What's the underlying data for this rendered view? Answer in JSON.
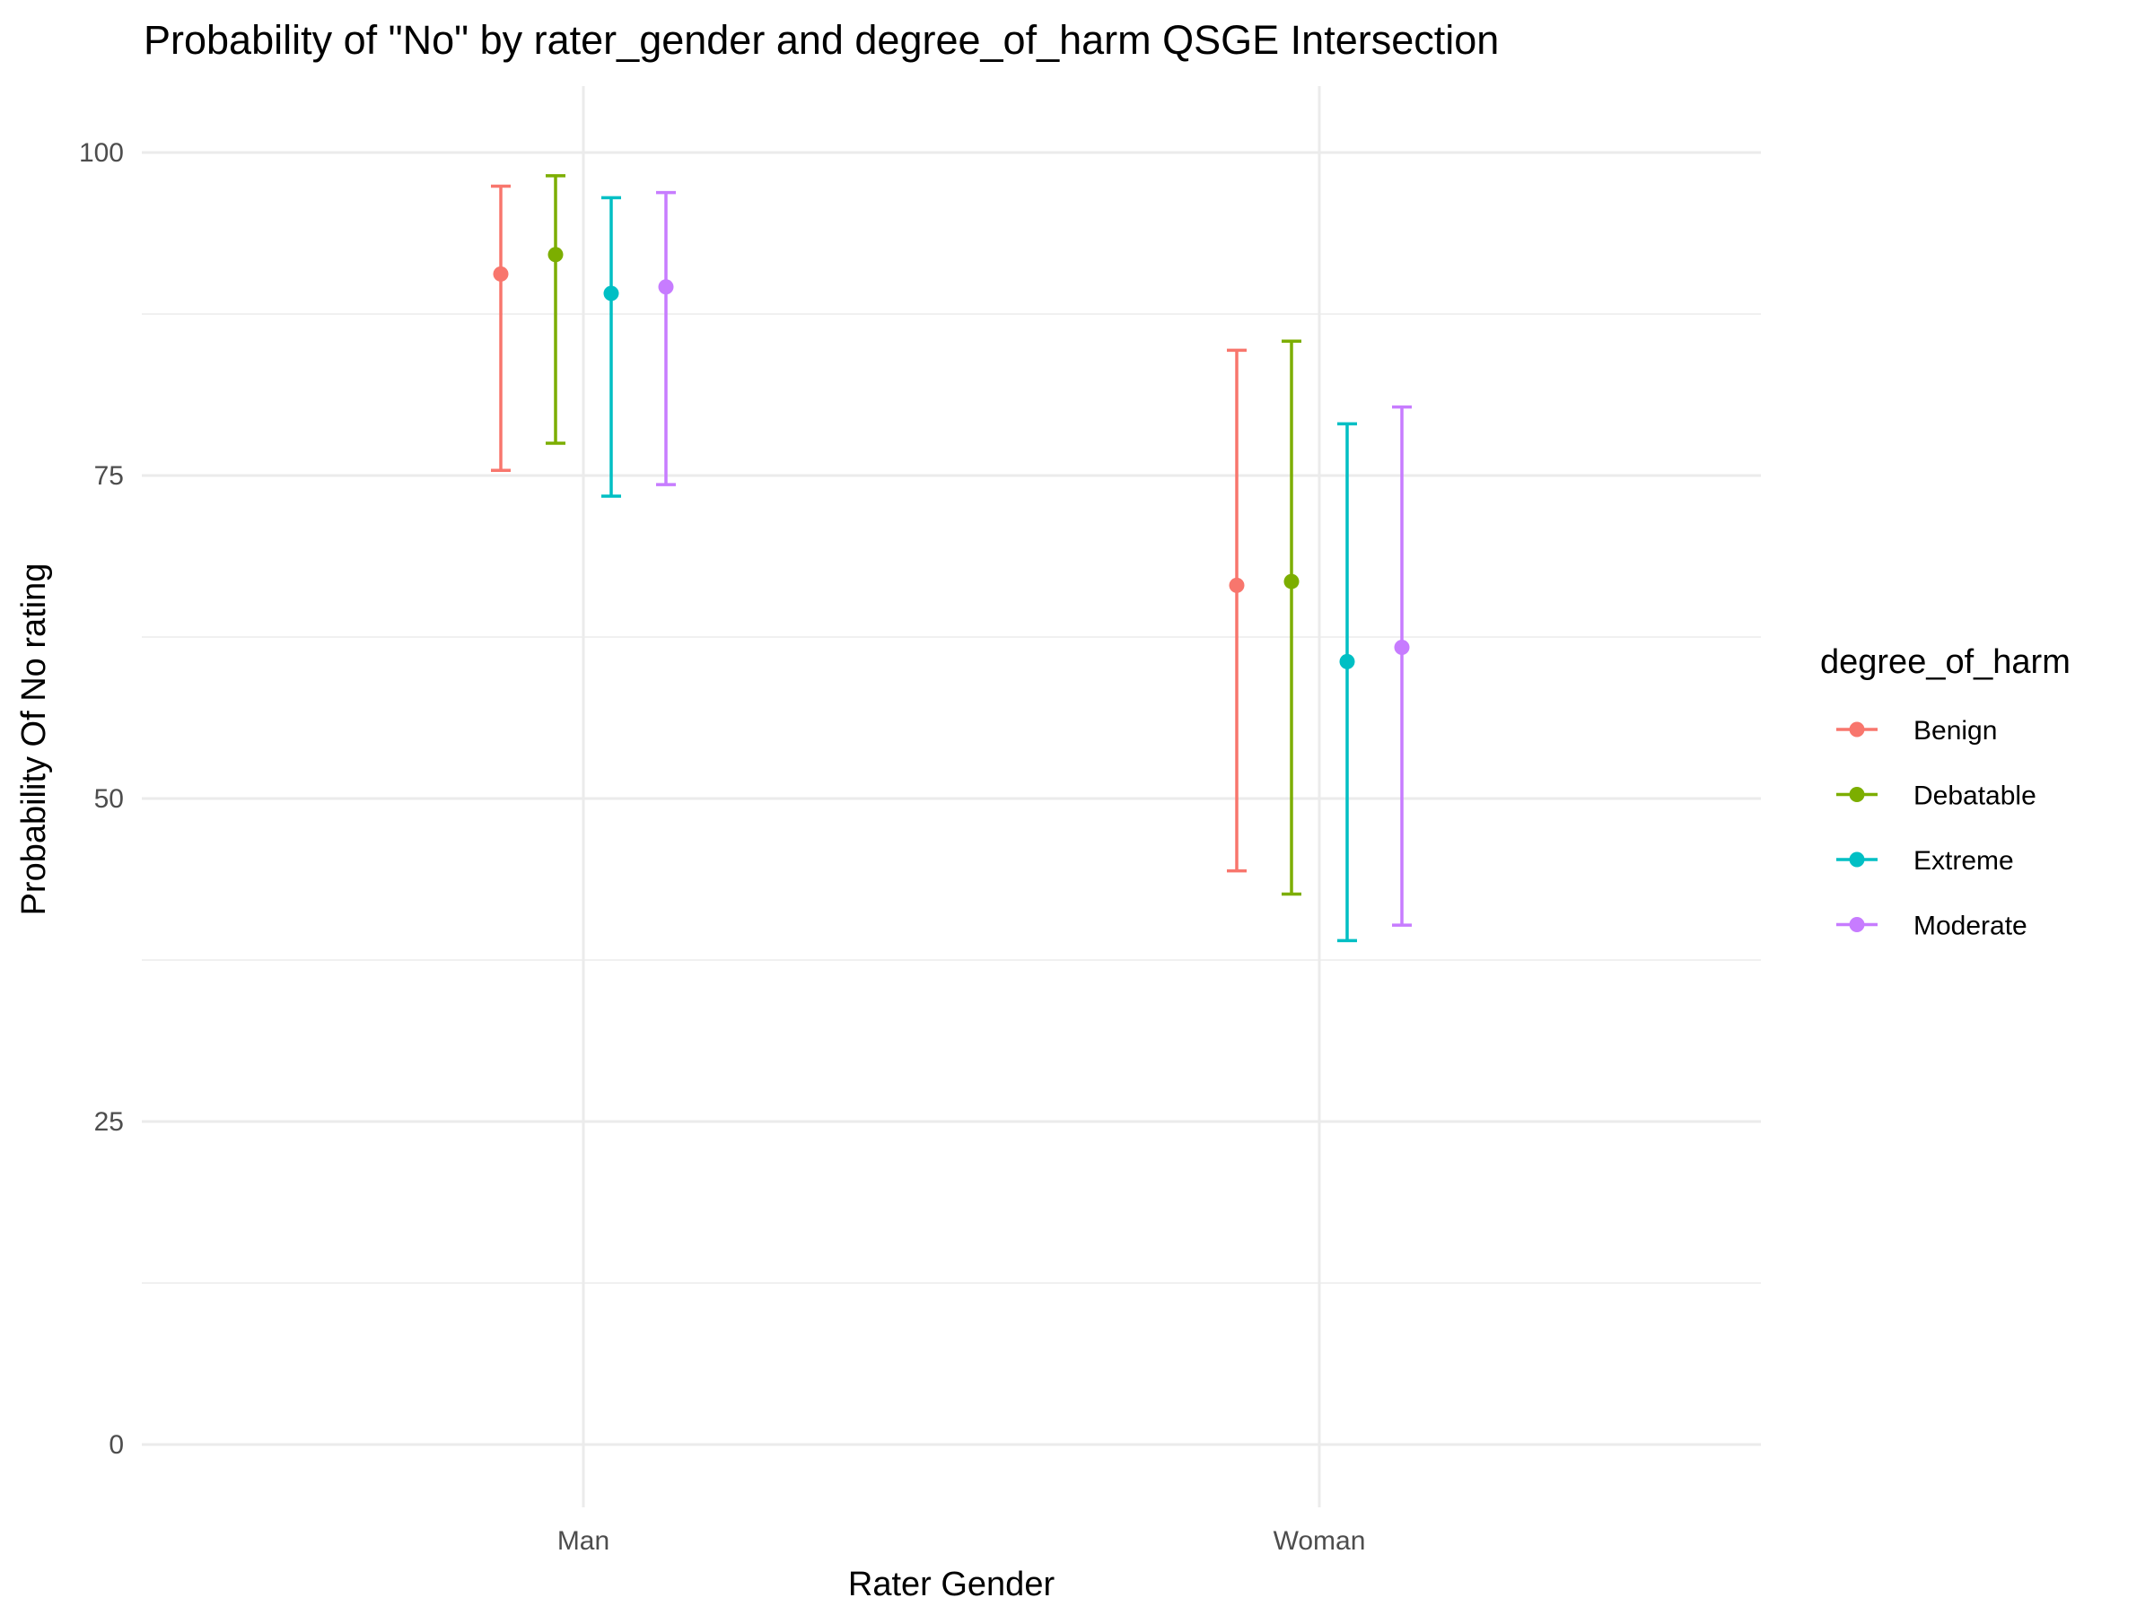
{
  "chart_data": {
    "type": "scatter",
    "title": "Probability of \"No\" by rater_gender and  degree_of_harm  QSGE Intersection",
    "xlabel": "Rater Gender",
    "ylabel": "Probability Of No rating",
    "categories": [
      "Man",
      "Woman"
    ],
    "ylim": [
      -5,
      105
    ],
    "yticks": [
      0,
      25,
      50,
      75,
      100
    ],
    "grid": true,
    "legend": {
      "title": "degree_of_harm",
      "position": "right"
    },
    "series": [
      {
        "name": "Benign",
        "color": "#F8766D",
        "values": [
          90.6,
          66.5
        ],
        "lower": [
          75.4,
          44.4
        ],
        "upper": [
          97.4,
          84.7
        ]
      },
      {
        "name": "Debatable",
        "color": "#7CAE00",
        "values": [
          92.1,
          66.8
        ],
        "lower": [
          77.5,
          42.6
        ],
        "upper": [
          98.2,
          85.4
        ]
      },
      {
        "name": "Extreme",
        "color": "#00BFC4",
        "values": [
          89.1,
          60.6
        ],
        "lower": [
          73.4,
          39.0
        ],
        "upper": [
          96.5,
          79.0
        ]
      },
      {
        "name": "Moderate",
        "color": "#C77CFF",
        "values": [
          89.6,
          61.7
        ],
        "lower": [
          74.3,
          40.2
        ],
        "upper": [
          96.9,
          80.3
        ]
      }
    ]
  }
}
